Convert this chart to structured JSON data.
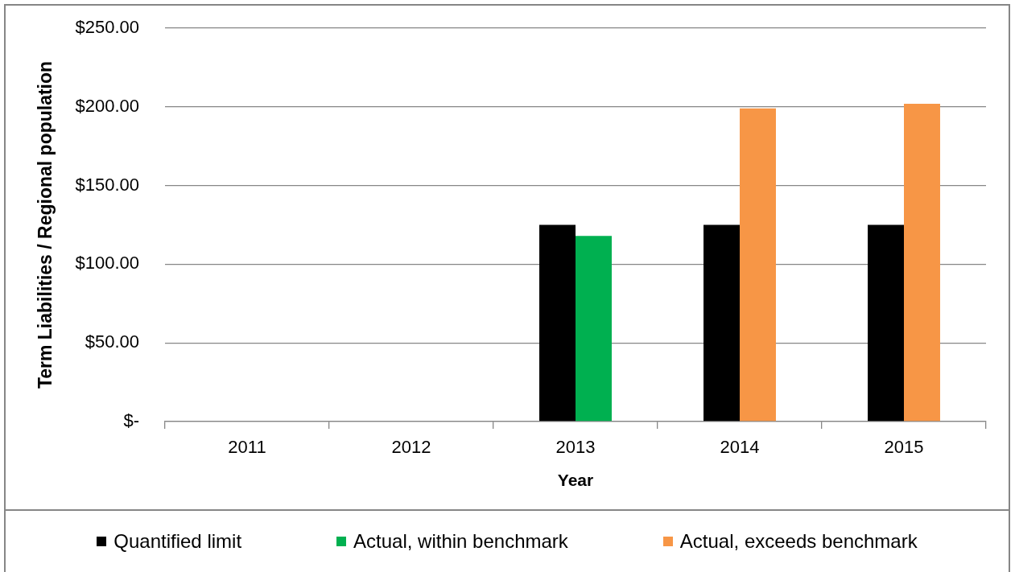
{
  "chart_data": {
    "type": "bar",
    "categories": [
      "2011",
      "2012",
      "2013",
      "2014",
      "2015"
    ],
    "series": [
      {
        "name": "Quantified limit",
        "color": "#000000",
        "values": [
          null,
          null,
          125,
          125,
          125
        ]
      },
      {
        "name": "Actual, within benchmark",
        "color": "#00b050",
        "values": [
          null,
          null,
          118,
          null,
          null
        ]
      },
      {
        "name": "Actual, exceeds benchmark",
        "color": "#f79646",
        "values": [
          null,
          null,
          null,
          199,
          202
        ]
      }
    ],
    "xlabel": "Year",
    "ylabel": "Term Liabilities / Regional population",
    "ylim": [
      0,
      250
    ],
    "yticks": [
      {
        "value": 0,
        "label": "$-"
      },
      {
        "value": 50,
        "label": "$50.00"
      },
      {
        "value": 100,
        "label": "$100.00"
      },
      {
        "value": 150,
        "label": "$150.00"
      },
      {
        "value": 200,
        "label": "$200.00"
      },
      {
        "value": 250,
        "label": "$250.00"
      }
    ],
    "grid": "y",
    "legend": "bottom"
  }
}
